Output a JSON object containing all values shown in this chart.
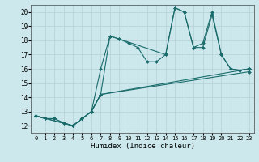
{
  "xlabel": "Humidex (Indice chaleur)",
  "bg_color": "#cce8ec",
  "grid_color": "#b8d4d8",
  "line_color": "#1a6b6b",
  "xlim": [
    -0.5,
    23.5
  ],
  "ylim": [
    11.5,
    20.5
  ],
  "yticks": [
    12,
    13,
    14,
    15,
    16,
    17,
    18,
    19,
    20
  ],
  "xticks": [
    0,
    1,
    2,
    3,
    4,
    5,
    6,
    7,
    8,
    9,
    10,
    11,
    12,
    13,
    14,
    15,
    16,
    17,
    18,
    19,
    20,
    21,
    22,
    23
  ],
  "line1_x": [
    0,
    1,
    2,
    3,
    4,
    5,
    6,
    7,
    8,
    9,
    10,
    11,
    12,
    13,
    14,
    15,
    16,
    17,
    18,
    19,
    20,
    21,
    22,
    23
  ],
  "line1_y": [
    12.7,
    12.5,
    12.5,
    12.2,
    12.0,
    12.5,
    13.0,
    16.0,
    18.3,
    18.1,
    17.8,
    17.5,
    16.5,
    16.5,
    17.0,
    20.3,
    20.0,
    17.5,
    17.5,
    19.8,
    17.0,
    16.0,
    15.9,
    16.0
  ],
  "line2_x": [
    0,
    1,
    2,
    3,
    4,
    5,
    6,
    7,
    8,
    9,
    14,
    15,
    16,
    17,
    18,
    19,
    20,
    21,
    22,
    23
  ],
  "line2_y": [
    12.7,
    12.5,
    12.5,
    12.2,
    12.0,
    12.5,
    13.0,
    14.2,
    18.3,
    18.1,
    17.0,
    20.3,
    20.0,
    17.5,
    17.8,
    20.0,
    17.0,
    16.0,
    15.9,
    16.0
  ],
  "line3_x": [
    0,
    4,
    5,
    6,
    7,
    23
  ],
  "line3_y": [
    12.7,
    12.0,
    12.5,
    13.0,
    14.2,
    16.0
  ],
  "line4_x": [
    0,
    4,
    5,
    6,
    7,
    23
  ],
  "line4_y": [
    12.7,
    12.0,
    12.5,
    13.0,
    14.2,
    15.8
  ]
}
